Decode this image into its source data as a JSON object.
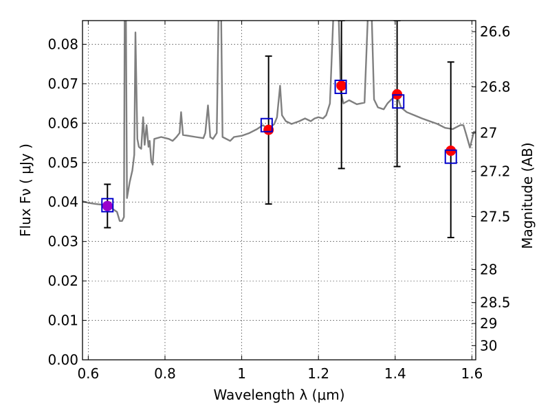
{
  "chart_data": {
    "type": "scatter",
    "xlabel": "Wavelength  λ (μm)",
    "ylabel": "Flux  Fν  ( μJy )",
    "y2label": "Magnitude (AB)",
    "xlim": [
      0.585,
      1.61
    ],
    "ylim": [
      0.0,
      0.086
    ],
    "grid": true,
    "x_ticks": [
      {
        "value": 0.6,
        "label": "0.6"
      },
      {
        "value": 0.8,
        "label": "0.8"
      },
      {
        "value": 1.0,
        "label": "1"
      },
      {
        "value": 1.2,
        "label": "1.2"
      },
      {
        "value": 1.4,
        "label": "1.4"
      },
      {
        "value": 1.6,
        "label": "1.6"
      }
    ],
    "y_ticks": [
      {
        "value": 0.0,
        "label": "0.00"
      },
      {
        "value": 0.01,
        "label": "0.01"
      },
      {
        "value": 0.02,
        "label": "0.02"
      },
      {
        "value": 0.03,
        "label": "0.03"
      },
      {
        "value": 0.04,
        "label": "0.04"
      },
      {
        "value": 0.05,
        "label": "0.05"
      },
      {
        "value": 0.06,
        "label": "0.06"
      },
      {
        "value": 0.07,
        "label": "0.07"
      },
      {
        "value": 0.08,
        "label": "0.08"
      }
    ],
    "y2_ticks": [
      {
        "flux": 0.0832,
        "label": "26.6"
      },
      {
        "flux": 0.0692,
        "label": "26.8"
      },
      {
        "flux": 0.0575,
        "label": "27"
      },
      {
        "flux": 0.0478,
        "label": "27.2"
      },
      {
        "flux": 0.0363,
        "label": "27.5"
      },
      {
        "flux": 0.0229,
        "label": "28"
      },
      {
        "flux": 0.0145,
        "label": "28.5"
      },
      {
        "flux": 0.0092,
        "label": "29"
      },
      {
        "flux": 0.0036,
        "label": "30"
      }
    ],
    "observed": [
      {
        "x": 0.65,
        "y": 0.039,
        "yerr": [
          0.0335,
          0.0445
        ],
        "color": "#9900cc"
      },
      {
        "x": 1.07,
        "y": 0.0583,
        "yerr": [
          0.0395,
          0.077
        ],
        "color": "#ff0000"
      },
      {
        "x": 1.26,
        "y": 0.0695,
        "yerr": [
          0.0485,
          0.086
        ],
        "color": "#ff0000"
      },
      {
        "x": 1.405,
        "y": 0.0673,
        "yerr": [
          0.049,
          0.086
        ],
        "color": "#ff0000"
      },
      {
        "x": 1.545,
        "y": 0.053,
        "yerr": [
          0.031,
          0.0755
        ],
        "color": "#ff0000"
      }
    ],
    "model": [
      {
        "x": 0.65,
        "y": 0.0392
      },
      {
        "x": 1.065,
        "y": 0.0595
      },
      {
        "x": 1.258,
        "y": 0.0692
      },
      {
        "x": 1.408,
        "y": 0.0655
      },
      {
        "x": 1.545,
        "y": 0.0515
      }
    ],
    "spectrum": [
      [
        0.585,
        0.0402
      ],
      [
        0.6,
        0.0398
      ],
      [
        0.62,
        0.0395
      ],
      [
        0.64,
        0.0393
      ],
      [
        0.66,
        0.0385
      ],
      [
        0.675,
        0.0375
      ],
      [
        0.682,
        0.0352
      ],
      [
        0.688,
        0.0352
      ],
      [
        0.693,
        0.0362
      ],
      [
        0.695,
        0.09
      ],
      [
        0.698,
        0.09
      ],
      [
        0.701,
        0.041
      ],
      [
        0.708,
        0.045
      ],
      [
        0.715,
        0.048
      ],
      [
        0.72,
        0.052
      ],
      [
        0.723,
        0.083
      ],
      [
        0.728,
        0.056
      ],
      [
        0.732,
        0.054
      ],
      [
        0.738,
        0.0535
      ],
      [
        0.743,
        0.0615
      ],
      [
        0.747,
        0.0545
      ],
      [
        0.752,
        0.0595
      ],
      [
        0.757,
        0.054
      ],
      [
        0.76,
        0.0555
      ],
      [
        0.764,
        0.0505
      ],
      [
        0.768,
        0.0495
      ],
      [
        0.772,
        0.056
      ],
      [
        0.79,
        0.0565
      ],
      [
        0.81,
        0.056
      ],
      [
        0.82,
        0.0555
      ],
      [
        0.83,
        0.0565
      ],
      [
        0.838,
        0.0575
      ],
      [
        0.842,
        0.0628
      ],
      [
        0.847,
        0.057
      ],
      [
        0.86,
        0.0568
      ],
      [
        0.88,
        0.0565
      ],
      [
        0.9,
        0.0562
      ],
      [
        0.905,
        0.0575
      ],
      [
        0.912,
        0.0645
      ],
      [
        0.918,
        0.0565
      ],
      [
        0.925,
        0.056
      ],
      [
        0.935,
        0.0575
      ],
      [
        0.94,
        0.09
      ],
      [
        0.946,
        0.09
      ],
      [
        0.95,
        0.0565
      ],
      [
        0.97,
        0.0555
      ],
      [
        0.98,
        0.0565
      ],
      [
        1.0,
        0.0568
      ],
      [
        1.02,
        0.0575
      ],
      [
        1.04,
        0.0585
      ],
      [
        1.055,
        0.0595
      ],
      [
        1.07,
        0.0585
      ],
      [
        1.085,
        0.0598
      ],
      [
        1.092,
        0.0615
      ],
      [
        1.1,
        0.0695
      ],
      [
        1.105,
        0.062
      ],
      [
        1.115,
        0.0605
      ],
      [
        1.13,
        0.0598
      ],
      [
        1.15,
        0.0605
      ],
      [
        1.165,
        0.0612
      ],
      [
        1.18,
        0.0605
      ],
      [
        1.19,
        0.0612
      ],
      [
        1.2,
        0.0615
      ],
      [
        1.212,
        0.0612
      ],
      [
        1.22,
        0.062
      ],
      [
        1.23,
        0.065
      ],
      [
        1.24,
        0.09
      ],
      [
        1.252,
        0.09
      ],
      [
        1.258,
        0.068
      ],
      [
        1.265,
        0.065
      ],
      [
        1.28,
        0.0658
      ],
      [
        1.3,
        0.0648
      ],
      [
        1.32,
        0.0652
      ],
      [
        1.33,
        0.09
      ],
      [
        1.338,
        0.09
      ],
      [
        1.345,
        0.066
      ],
      [
        1.355,
        0.064
      ],
      [
        1.37,
        0.0635
      ],
      [
        1.38,
        0.065
      ],
      [
        1.39,
        0.066
      ],
      [
        1.405,
        0.067
      ],
      [
        1.415,
        0.064
      ],
      [
        1.43,
        0.0628
      ],
      [
        1.45,
        0.062
      ],
      [
        1.47,
        0.0612
      ],
      [
        1.49,
        0.0605
      ],
      [
        1.51,
        0.0598
      ],
      [
        1.53,
        0.0588
      ],
      [
        1.55,
        0.0585
      ],
      [
        1.56,
        0.059
      ],
      [
        1.57,
        0.0595
      ],
      [
        1.578,
        0.0595
      ],
      [
        1.585,
        0.0572
      ],
      [
        1.595,
        0.0538
      ],
      [
        1.605,
        0.0578
      ],
      [
        1.61,
        0.0578
      ]
    ],
    "colors": {
      "spectrum": "#7f7f7f",
      "errorbar": "#000000",
      "model_square": "#0000cc",
      "grid": "#000000"
    }
  }
}
